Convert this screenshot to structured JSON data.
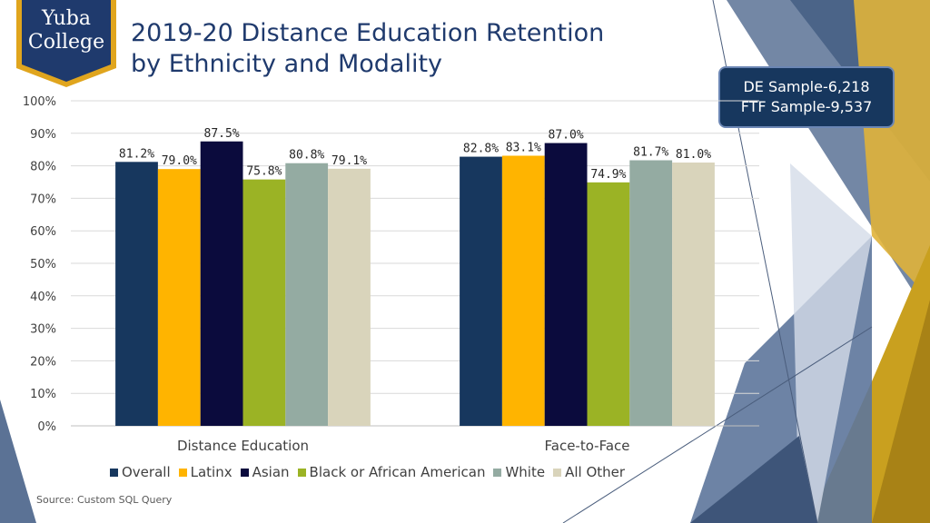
{
  "logo": {
    "line1": "Yuba",
    "line2": "College"
  },
  "title": {
    "line1": "2019-20 Distance Education Retention",
    "line2": "by Ethnicity and Modality"
  },
  "sample_box": {
    "line1": "DE Sample-6,218",
    "line2": "FTF Sample-9,537"
  },
  "source": "Source: Custom SQL Query",
  "colors": {
    "title": "#1f3a6d",
    "box": "#17375e",
    "Overall": "#17375e",
    "Latinx": "#ffb400",
    "Asian": "#0b0b3d",
    "Black or African American": "#9bb325",
    "White": "#94aba2",
    "All Other": "#d9d4bb"
  },
  "chart_data": {
    "type": "bar",
    "categories": [
      "Distance Education",
      "Face-to-Face"
    ],
    "series": [
      {
        "name": "Overall",
        "values": [
          81.2,
          82.8
        ],
        "labels": [
          "81.2%",
          "82.8%"
        ]
      },
      {
        "name": "Latinx",
        "values": [
          79.0,
          83.1
        ],
        "labels": [
          "79.0%",
          "83.1%"
        ]
      },
      {
        "name": "Asian",
        "values": [
          87.5,
          87.0
        ],
        "labels": [
          "87.5%",
          "87.0%"
        ]
      },
      {
        "name": "Black or African American",
        "values": [
          75.8,
          74.9
        ],
        "labels": [
          "75.8%",
          "74.9%"
        ]
      },
      {
        "name": "White",
        "values": [
          80.8,
          81.7
        ],
        "labels": [
          "80.8%",
          "81.7%"
        ]
      },
      {
        "name": "All Other",
        "values": [
          79.1,
          81.0
        ],
        "labels": [
          "79.1%",
          "81.0%"
        ]
      }
    ],
    "ylim": [
      0,
      100
    ],
    "yticks": [
      "0%",
      "10%",
      "20%",
      "30%",
      "40%",
      "50%",
      "60%",
      "70%",
      "80%",
      "90%",
      "100%"
    ],
    "grid": true,
    "legend": "bottom"
  }
}
